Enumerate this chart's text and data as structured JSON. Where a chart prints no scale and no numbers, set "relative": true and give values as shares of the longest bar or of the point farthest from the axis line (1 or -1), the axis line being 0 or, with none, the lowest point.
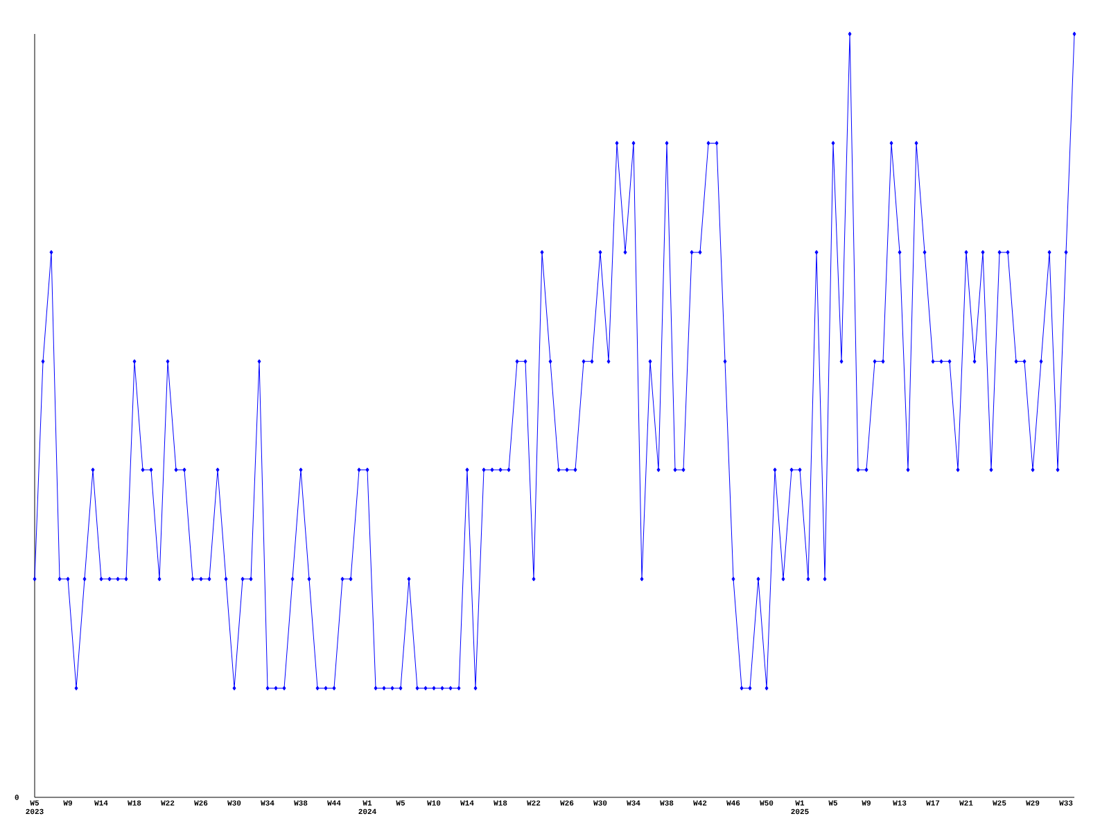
{
  "chart_data": {
    "type": "line",
    "relative": true,
    "marker": "diamond",
    "line_style": "solid",
    "categories": [
      "W5 2023",
      null,
      null,
      null,
      "W9",
      null,
      null,
      null,
      "W14",
      null,
      null,
      null,
      "W18",
      null,
      null,
      null,
      "W22",
      null,
      null,
      null,
      "W26",
      null,
      null,
      null,
      "W30",
      null,
      null,
      null,
      "W34",
      null,
      null,
      null,
      "W38",
      null,
      null,
      null,
      "W44",
      null,
      null,
      null,
      "W1 2024",
      null,
      null,
      null,
      "W5",
      null,
      null,
      null,
      "W10",
      null,
      null,
      null,
      "W14",
      null,
      null,
      null,
      "W18",
      null,
      null,
      null,
      "W22",
      null,
      null,
      null,
      "W26",
      null,
      null,
      null,
      "W30",
      null,
      null,
      null,
      "W34",
      null,
      null,
      null,
      "W38",
      null,
      null,
      null,
      "W42",
      null,
      null,
      null,
      "W46",
      null,
      null,
      null,
      "W50",
      null,
      null,
      null,
      "W1 2025",
      null,
      null,
      null,
      "W5",
      null,
      null,
      null,
      "W9",
      null,
      null,
      null,
      "W13",
      null,
      null,
      null,
      "W17",
      null,
      null,
      null,
      "W21",
      null,
      null,
      null,
      "W25",
      null,
      null,
      null,
      "W29",
      null,
      null,
      null,
      "W33",
      null
    ],
    "series": [
      {
        "color": "#0000ff",
        "values": [
          0.286,
          0.571,
          0.714,
          0.286,
          0.286,
          0.143,
          0.286,
          0.429,
          0.286,
          0.286,
          0.286,
          0.286,
          0.571,
          0.429,
          0.429,
          0.286,
          0.571,
          0.429,
          0.429,
          0.286,
          0.286,
          0.286,
          0.429,
          0.286,
          0.143,
          0.286,
          0.286,
          0.571,
          0.143,
          0.143,
          0.143,
          0.286,
          0.429,
          0.286,
          0.143,
          0.143,
          0.143,
          0.286,
          0.286,
          0.429,
          0.429,
          0.143,
          0.143,
          0.143,
          0.143,
          0.286,
          0.143,
          0.143,
          0.143,
          0.143,
          0.143,
          0.143,
          0.429,
          0.143,
          0.429,
          0.429,
          0.429,
          0.429,
          0.571,
          0.571,
          0.286,
          0.714,
          0.571,
          0.429,
          0.429,
          0.429,
          0.571,
          0.571,
          0.714,
          0.571,
          0.857,
          0.714,
          0.857,
          0.286,
          0.571,
          0.429,
          0.857,
          0.429,
          0.429,
          0.714,
          0.714,
          0.857,
          0.857,
          0.571,
          0.286,
          0.143,
          0.143,
          0.286,
          0.143,
          0.429,
          0.286,
          0.429,
          0.429,
          0.286,
          0.714,
          0.286,
          0.857,
          0.571,
          1,
          0.429,
          0.429,
          0.571,
          0.571,
          0.857,
          0.714,
          0.429,
          0.857,
          0.714,
          0.571,
          0.571,
          0.571,
          0.429,
          0.714,
          0.571,
          0.714,
          0.429,
          0.714,
          0.714,
          0.571,
          0.571,
          0.429,
          0.571,
          0.714,
          0.429,
          0.714,
          1
        ]
      }
    ],
    "annotations": [
      "0"
    ]
  }
}
